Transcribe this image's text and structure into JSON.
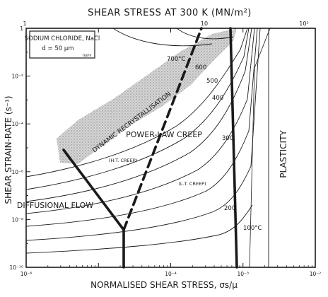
{
  "chart_data": {
    "type": "line",
    "title": "",
    "top_axis_label": "SHEAR STRESS AT 300 K (MN/m²)",
    "top_ticks": [
      "1",
      "10",
      "10²"
    ],
    "xlabel": "NORMALISED SHEAR STRESS, σs/μ",
    "ylabel": "SHEAR STRAIN-RATE (s⁻¹)",
    "x_scale": "log",
    "y_scale": "log",
    "xlim": [
      1e-06,
      0.01
    ],
    "ylim": [
      1e-10,
      1
    ],
    "x_tick_labels": [
      "10⁻⁶",
      "10⁻⁴",
      "10⁻³",
      "10⁻²"
    ],
    "y_tick_labels": [
      "1",
      "10⁻²",
      "10⁻⁴",
      "10⁻⁶",
      "10⁻⁸",
      "10⁻¹⁰"
    ],
    "legend_box": {
      "material": "SODIUM CHLORIDE, NaCl",
      "grain_size": "d = 50 μm",
      "code": "76879"
    },
    "fields": [
      {
        "label": "DYNAMIC RECRYSTALLISATION"
      },
      {
        "label": "POWER-LAW CREEP"
      },
      {
        "label": "(H.T. CREEP)"
      },
      {
        "label": "(L.T. CREEP)"
      },
      {
        "label": "DIFFUSIONAL FLOW"
      },
      {
        "label": "PLASTICITY"
      }
    ],
    "contour_labels": [
      "700°C",
      "600",
      "500",
      "400",
      "300",
      "200",
      "100°C"
    ]
  }
}
